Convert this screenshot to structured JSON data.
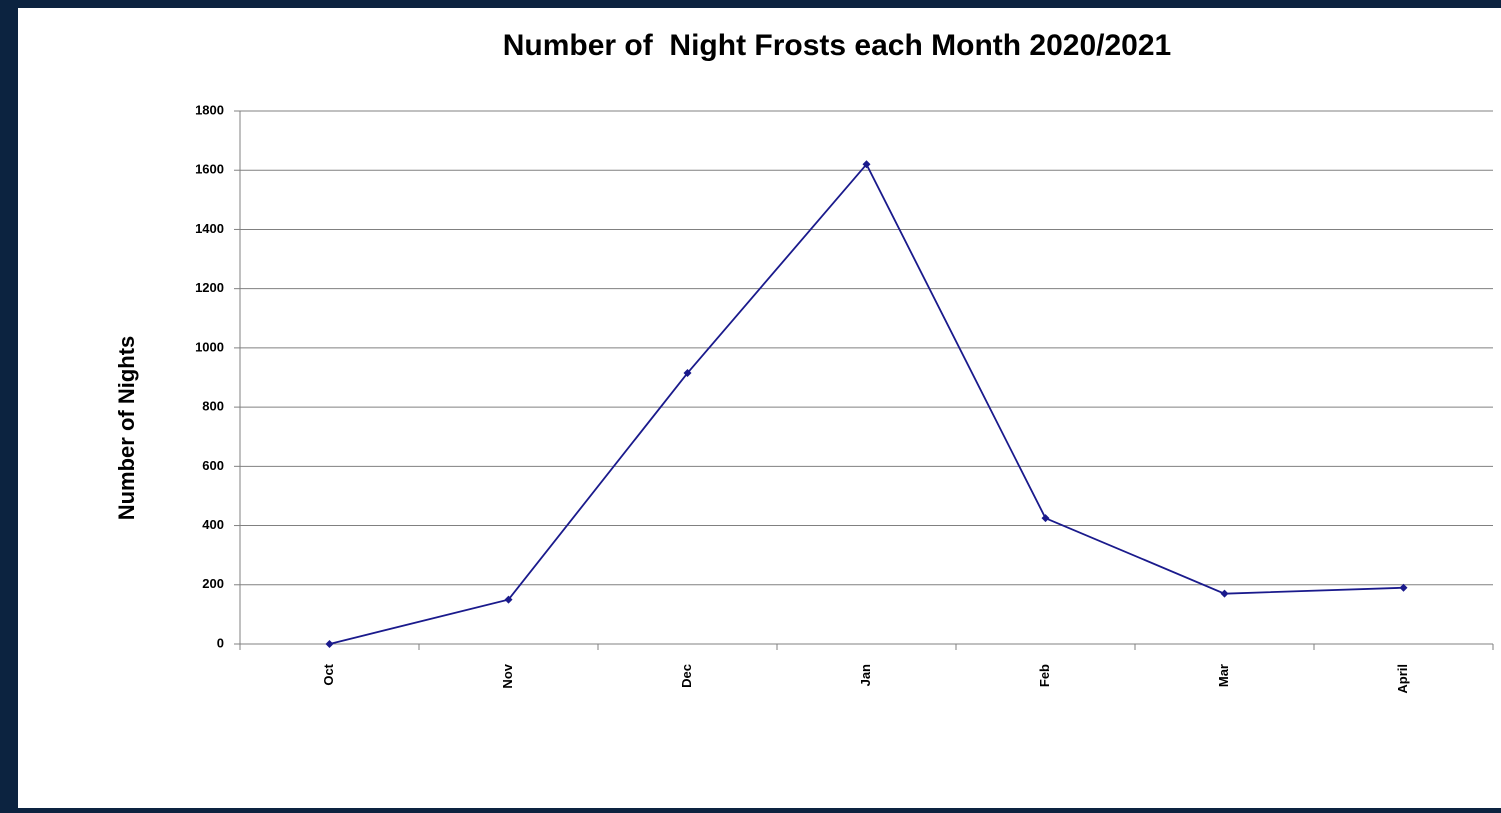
{
  "chart_data": {
    "type": "line",
    "title": "Number of  Night Frosts each Month 2020/2021",
    "y_label": "Number of Nights",
    "categories": [
      "Oct",
      "Nov",
      "Dec",
      "Jan",
      "Feb",
      "Mar",
      "April"
    ],
    "series": [
      {
        "name": "Number of Nights",
        "color": "#1a1a8c",
        "values": [
          0,
          150,
          915,
          1620,
          425,
          170,
          190
        ]
      }
    ],
    "ylim": [
      0,
      1800
    ],
    "yticks": [
      0,
      200,
      400,
      600,
      800,
      1000,
      1200,
      1400,
      1600,
      1800
    ],
    "grid": true
  }
}
